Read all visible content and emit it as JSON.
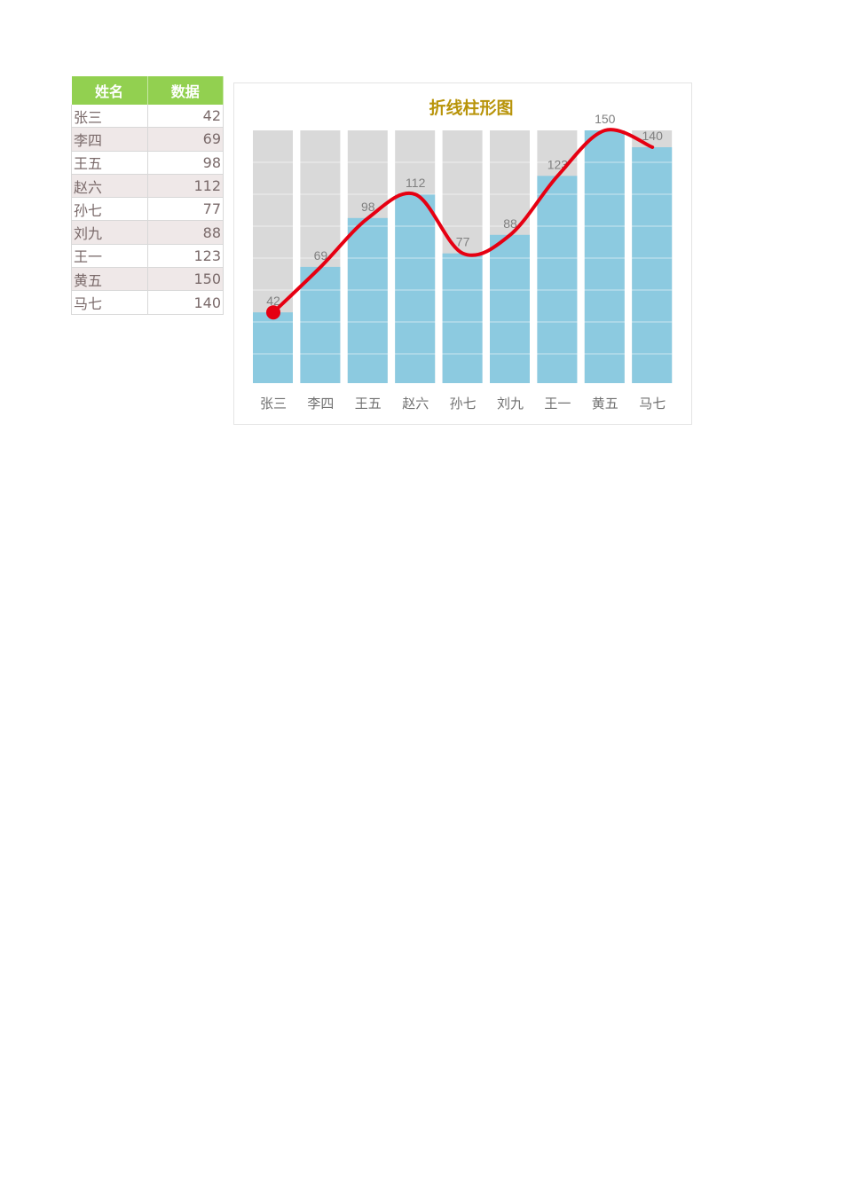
{
  "table": {
    "headers": [
      "姓名",
      "数据"
    ],
    "rows": [
      {
        "name": "张三",
        "value": "42"
      },
      {
        "name": "李四",
        "value": "69"
      },
      {
        "name": "王五",
        "value": "98"
      },
      {
        "name": "赵六",
        "value": "112"
      },
      {
        "name": "孙七",
        "value": "77"
      },
      {
        "name": "刘九",
        "value": "88"
      },
      {
        "name": "王一",
        "value": "123"
      },
      {
        "name": "黄五",
        "value": "150"
      },
      {
        "name": "马七",
        "value": "140"
      }
    ]
  },
  "chart_data": {
    "type": "bar",
    "title": "折线柱形图",
    "categories": [
      "张三",
      "李四",
      "王五",
      "赵六",
      "孙七",
      "刘九",
      "王一",
      "黄五",
      "马七"
    ],
    "values": [
      42,
      69,
      98,
      112,
      77,
      88,
      123,
      150,
      140
    ],
    "background_max": 150,
    "overlay_line": "smooth",
    "xlabel": "",
    "ylabel": "",
    "ylim": [
      0,
      160
    ],
    "grid": true,
    "legend": "none",
    "colors": {
      "bar": "#8ccae0",
      "bar_background": "#d9d9d9",
      "line": "#e60012",
      "title": "#b8940a",
      "header": "#92d050"
    }
  }
}
